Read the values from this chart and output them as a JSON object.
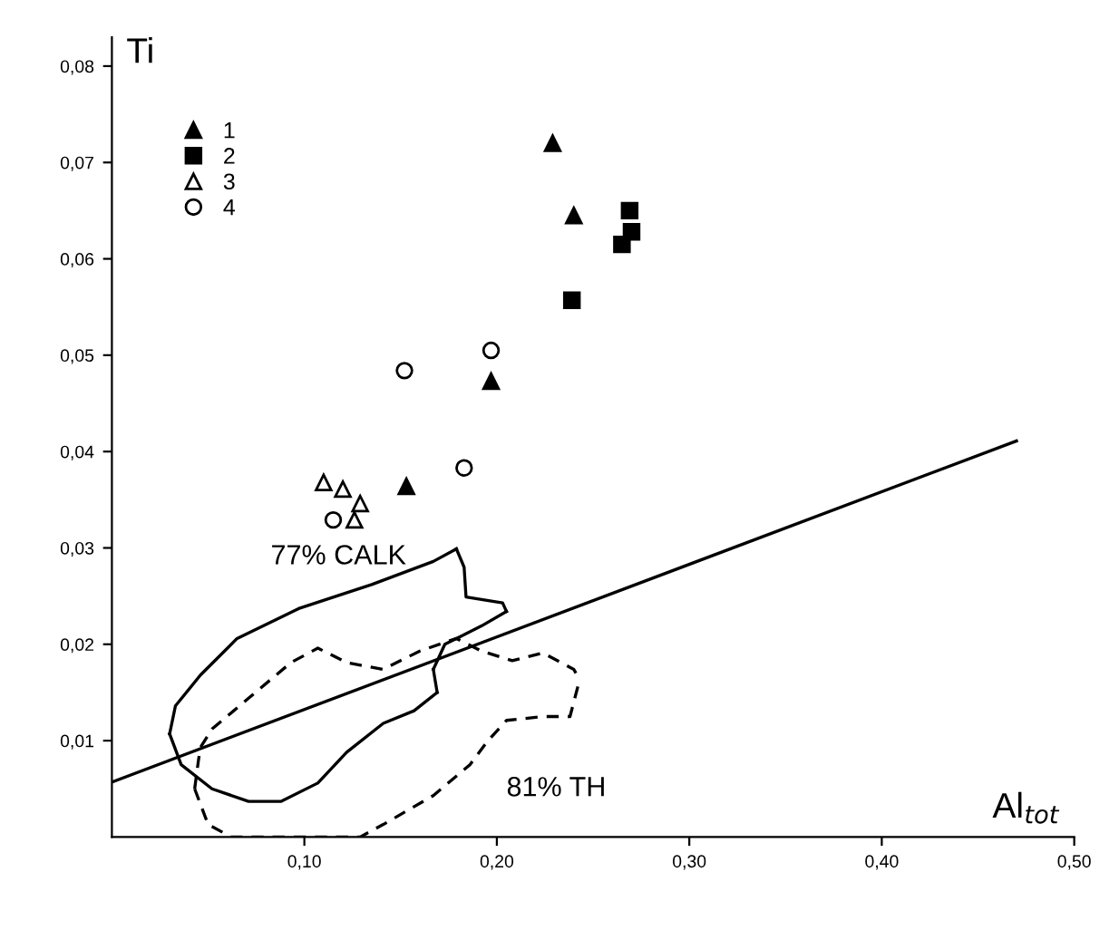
{
  "chart_data": {
    "type": "scatter",
    "xlabel": "Al$_{tot}$",
    "ylabel": "Ti",
    "xlim": [
      0,
      0.5
    ],
    "ylim": [
      0,
      0.083
    ],
    "xticks": [
      {
        "value": 0.1,
        "label": "0,10"
      },
      {
        "value": 0.2,
        "label": "0,20"
      },
      {
        "value": 0.3,
        "label": "0,30"
      },
      {
        "value": 0.4,
        "label": "0,40"
      },
      {
        "value": 0.5,
        "label": "0,50"
      }
    ],
    "yticks": [
      {
        "value": 0.01,
        "label": "0,01"
      },
      {
        "value": 0.02,
        "label": "0,02"
      },
      {
        "value": 0.03,
        "label": "0,03"
      },
      {
        "value": 0.04,
        "label": "0,04"
      },
      {
        "value": 0.05,
        "label": "0,05"
      },
      {
        "value": 0.06,
        "label": "0,06"
      },
      {
        "value": 0.07,
        "label": "0,07"
      },
      {
        "value": 0.08,
        "label": "0,08"
      }
    ],
    "grid": false,
    "legend": "top left",
    "annotations": [
      "77% CALK",
      "81% TH"
    ],
    "series": [
      {
        "name": "1",
        "color": "#000000",
        "marker": "triangle",
        "x": [
          0.229,
          0.24,
          0.197,
          0.153
        ],
        "values": [
          0.072,
          0.0645,
          0.0473,
          0.0364
        ]
      },
      {
        "name": "2",
        "color": "#000000",
        "marker": "square",
        "x": [
          0.269,
          0.27,
          0.265,
          0.239
        ],
        "values": [
          0.065,
          0.0628,
          0.0615,
          0.0557
        ]
      },
      {
        "name": "3",
        "color": "#000000",
        "marker": "triangle",
        "x": [
          0.11,
          0.12,
          0.129,
          0.126
        ],
        "values": [
          0.0368,
          0.0361,
          0.0346,
          0.0329
        ]
      },
      {
        "name": "4",
        "color": "#000000",
        "marker": "circle",
        "x": [
          0.152,
          0.197,
          0.183,
          0.115
        ],
        "values": [
          0.0484,
          0.0505,
          0.0383,
          0.0329
        ]
      },
      {
        "type": "line",
        "color": "#000000",
        "marker": "none",
        "line_style": "solid",
        "x": [
          0,
          0.47
        ],
        "values": [
          0.0057,
          0.0411
        ]
      },
      {
        "type": "line",
        "color": "#000000",
        "marker": "none",
        "line_style": "solid",
        "x": [
          0.03,
          0.033,
          0.046,
          0.065,
          0.097,
          0.135,
          0.167,
          0.179
        ],
        "values": [
          0.0107,
          0.0136,
          0.0168,
          0.0206,
          0.0237,
          0.0262,
          0.0286,
          0.0299
        ]
      },
      {
        "type": "line",
        "color": "#000000",
        "marker": "none",
        "line_style": "solid",
        "x": [
          0.179,
          0.183,
          0.184,
          0.203,
          0.205
        ],
        "values": [
          0.0299,
          0.028,
          0.0249,
          0.0243,
          0.0234
        ]
      },
      {
        "type": "line",
        "color": "#000000",
        "marker": "none",
        "line_style": "solid",
        "x": [
          0.167,
          0.173,
          0.192,
          0.205
        ],
        "values": [
          0.0174,
          0.02,
          0.0219,
          0.0234
        ]
      },
      {
        "type": "line",
        "color": "#000000",
        "marker": "none",
        "line_style": "solid",
        "x": [
          0.167,
          0.169
        ],
        "values": [
          0.0174,
          0.015
        ]
      },
      {
        "type": "line",
        "color": "#000000",
        "marker": "none",
        "line_style": "solid",
        "x": [
          0.03,
          0.036,
          0.052,
          0.071,
          0.088,
          0.107,
          0.122,
          0.141,
          0.157,
          0.169
        ],
        "values": [
          0.0107,
          0.0075,
          0.005,
          0.0037,
          0.0037,
          0.0056,
          0.0088,
          0.0118,
          0.0131,
          0.015
        ]
      },
      {
        "type": "line",
        "color": "#000000",
        "marker": "none",
        "line_style": "dashed",
        "x": [
          0.043,
          0.045,
          0.046,
          0.052,
          0.071,
          0.093,
          0.107,
          0.122,
          0.141,
          0.16,
          0.179,
          0.192,
          0.208,
          0.224,
          0.24,
          0.243
        ],
        "values": [
          0.005,
          0.008,
          0.0093,
          0.0112,
          0.0144,
          0.0181,
          0.0196,
          0.0181,
          0.0174,
          0.0193,
          0.0206,
          0.0193,
          0.0183,
          0.0191,
          0.0174,
          0.0163
        ]
      },
      {
        "type": "line",
        "color": "#000000",
        "marker": "none",
        "line_style": "dashed",
        "x": [
          0.043,
          0.05,
          0.062,
          0.097,
          0.129,
          0.141,
          0.167,
          0.186,
          0.195,
          0.205,
          0.224,
          0.238,
          0.243
        ],
        "values": [
          0.005,
          0.0013,
          0.0,
          0.0,
          0.0,
          0.0013,
          0.0043,
          0.0075,
          0.0099,
          0.0121,
          0.0125,
          0.0125,
          0.0163
        ]
      }
    ]
  }
}
